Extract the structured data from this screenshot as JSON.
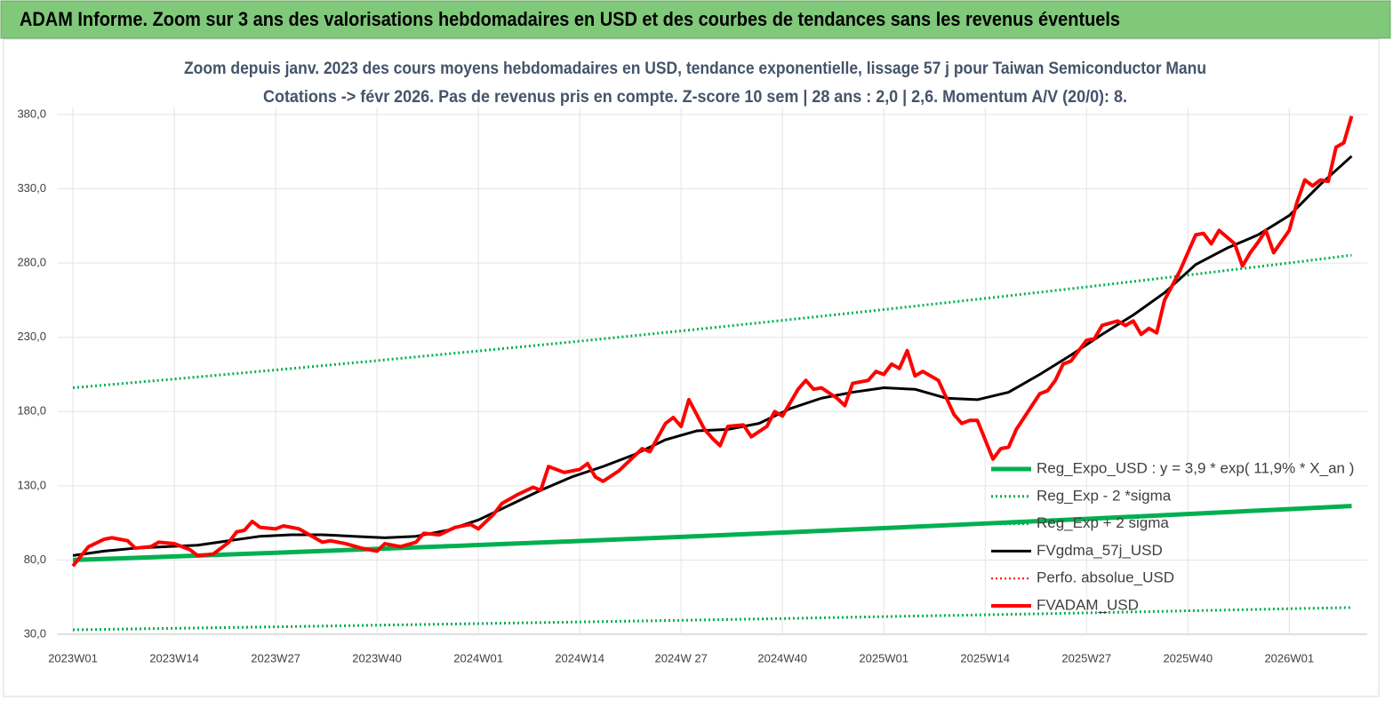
{
  "header": {
    "title": "ADAM Informe. Zoom sur 3 ans des valorisations hebdomadaires en USD et des courbes de tendances sans les revenus éventuels"
  },
  "chart_data": {
    "type": "line",
    "title": "Zoom depuis janv. 2023 des cours moyens hebdomadaires en USD, tendance exponentielle, lissage 57 j pour Taiwan Semiconductor Manu",
    "subtitle": "Cotations -> févr 2026. Pas de revenus pris en compte. Z-score 10 sem | 28 ans : 2,0 | 2,6. Momentum A/V (20/0): 8.",
    "xlim": [
      -2,
      166
    ],
    "xticks": [
      {
        "value": 0,
        "label": "2023W01"
      },
      {
        "value": 13,
        "label": "2023W14"
      },
      {
        "value": 26,
        "label": "2023W27"
      },
      {
        "value": 39,
        "label": "2023W40"
      },
      {
        "value": 52,
        "label": "2024W01"
      },
      {
        "value": 65,
        "label": "2024W14"
      },
      {
        "value": 78,
        "label": "2024W 27"
      },
      {
        "value": 91,
        "label": "2024W40"
      },
      {
        "value": 104,
        "label": "2025W01"
      },
      {
        "value": 117,
        "label": "2025W14"
      },
      {
        "value": 130,
        "label": "2025W27"
      },
      {
        "value": 143,
        "label": "2025W40"
      },
      {
        "value": 156,
        "label": "2026W01"
      }
    ],
    "ylim": [
      30,
      380
    ],
    "yticks": [
      {
        "value": 30,
        "label": "30,0"
      },
      {
        "value": 80,
        "label": "80,0"
      },
      {
        "value": 130,
        "label": "130,0"
      },
      {
        "value": 180,
        "label": "180,0"
      },
      {
        "value": 230,
        "label": "230,0"
      },
      {
        "value": 280,
        "label": "280,0"
      },
      {
        "value": 330,
        "label": "330,0"
      },
      {
        "value": 380,
        "label": "380,0"
      }
    ],
    "grid": true,
    "legend": "lower right",
    "series": [
      {
        "name": "Reg_Expo_USD : y = 3,9 * exp( 11,9% *  X_an )",
        "color": "#00b050",
        "width": 5,
        "dash": "none",
        "x": [
          0,
          13,
          26,
          39,
          52,
          65,
          78,
          91,
          104,
          117,
          130,
          143,
          156,
          164
        ],
        "values": [
          80,
          82.4,
          84.9,
          87.5,
          90.1,
          92.8,
          95.6,
          98.5,
          101.5,
          104.6,
          107.7,
          111.0,
          114.3,
          116.4
        ]
      },
      {
        "name": "Reg_Exp - 2 *sigma",
        "color": "#00b050",
        "width": 3,
        "dash": "2 3",
        "x": [
          0,
          13,
          26,
          39,
          52,
          65,
          78,
          91,
          104,
          117,
          130,
          143,
          156,
          164
        ],
        "values": [
          33,
          34.0,
          35.0,
          36.1,
          37.2,
          38.3,
          39.4,
          40.6,
          41.9,
          43.1,
          44.4,
          45.8,
          47.2,
          48.0
        ]
      },
      {
        "name": "Reg_Exp + 2 sigma",
        "color": "#00b050",
        "width": 3,
        "dash": "2 3",
        "x": [
          0,
          13,
          26,
          39,
          52,
          65,
          78,
          91,
          104,
          117,
          130,
          143,
          156,
          164
        ],
        "values": [
          196,
          201.9,
          208.0,
          214.3,
          220.8,
          227.4,
          234.3,
          241.4,
          248.7,
          256.2,
          263.9,
          271.9,
          280.1,
          285.3
        ]
      },
      {
        "name": "FVgdma_57j_USD",
        "color": "#000000",
        "width": 3,
        "dash": "none",
        "x": [
          0,
          4,
          8,
          12,
          16,
          20,
          24,
          28,
          32,
          36,
          40,
          44,
          48,
          52,
          56,
          60,
          64,
          68,
          72,
          76,
          80,
          84,
          88,
          92,
          96,
          100,
          104,
          108,
          112,
          116,
          120,
          124,
          128,
          132,
          136,
          140,
          144,
          148,
          152,
          156,
          160,
          164
        ],
        "values": [
          83,
          86,
          88,
          89,
          90,
          93,
          96,
          97,
          97,
          96,
          95,
          96,
          100,
          107,
          117,
          127,
          136,
          143,
          151,
          161,
          167,
          168,
          172,
          182,
          189,
          193,
          196,
          195,
          189,
          188,
          193,
          205,
          218,
          232,
          245,
          260,
          279,
          290,
          299,
          312,
          333,
          352
        ]
      },
      {
        "name": "Perfo. absolue_USD",
        "color": "#ff0000",
        "width": 2,
        "dash": "2 3",
        "x": [
          0,
          2,
          4,
          5,
          7,
          8,
          10,
          11,
          13,
          15,
          16,
          18,
          20,
          21,
          22,
          23,
          24,
          26,
          27,
          29,
          30,
          32,
          33,
          35,
          37,
          39,
          40,
          42,
          44,
          45,
          47,
          49,
          51,
          52,
          54,
          55,
          57,
          59,
          60,
          61,
          63,
          65,
          66,
          67,
          68,
          70,
          72,
          73,
          74,
          76,
          77,
          78,
          79,
          81,
          82,
          83,
          84,
          86,
          87,
          89,
          90,
          91,
          93,
          94,
          95,
          96,
          98,
          99,
          100,
          102,
          103,
          104,
          105,
          106,
          107,
          108,
          109,
          111,
          113,
          114,
          115,
          116,
          118,
          119,
          120,
          121,
          122,
          124,
          125,
          126,
          127,
          128,
          130,
          131,
          132,
          134,
          135,
          136,
          137,
          138,
          139,
          140,
          142,
          143,
          144,
          145,
          146,
          147,
          149,
          150,
          151,
          152,
          153,
          154,
          156,
          157,
          158,
          159,
          160,
          161,
          162,
          163,
          164
        ],
        "values": [
          76,
          89,
          94,
          95,
          93,
          88,
          89,
          92,
          91,
          87,
          83,
          84,
          92,
          99,
          100,
          106,
          102,
          101,
          103,
          101,
          98,
          92,
          93,
          91,
          88,
          86,
          91,
          89,
          92,
          98,
          97,
          102,
          104,
          101,
          111,
          118,
          124,
          129,
          127,
          143,
          139,
          141,
          145,
          136,
          133,
          140,
          150,
          155,
          153,
          172,
          176,
          170,
          188,
          168,
          162,
          157,
          170,
          171,
          163,
          170,
          180,
          177,
          195,
          201,
          195,
          196,
          189,
          184,
          199,
          201,
          207,
          205,
          212,
          209,
          221,
          204,
          207,
          201,
          178,
          172,
          174,
          174,
          148,
          155,
          156,
          168,
          176,
          192,
          194,
          201,
          212,
          214,
          228,
          229,
          238,
          241,
          238,
          241,
          232,
          236,
          233,
          255,
          275,
          287,
          299,
          300,
          293,
          302,
          293,
          278,
          287,
          294,
          302,
          287,
          302,
          321,
          336,
          332,
          336,
          335,
          358,
          361,
          379
        ]
      },
      {
        "name": "FVADAM_USD",
        "color": "#ff0000",
        "width": 4,
        "dash": "none",
        "x": [
          0,
          2,
          4,
          5,
          7,
          8,
          10,
          11,
          13,
          15,
          16,
          18,
          20,
          21,
          22,
          23,
          24,
          26,
          27,
          29,
          30,
          32,
          33,
          35,
          37,
          39,
          40,
          42,
          44,
          45,
          47,
          49,
          51,
          52,
          54,
          55,
          57,
          59,
          60,
          61,
          63,
          65,
          66,
          67,
          68,
          70,
          72,
          73,
          74,
          76,
          77,
          78,
          79,
          81,
          82,
          83,
          84,
          86,
          87,
          89,
          90,
          91,
          93,
          94,
          95,
          96,
          98,
          99,
          100,
          102,
          103,
          104,
          105,
          106,
          107,
          108,
          109,
          111,
          113,
          114,
          115,
          116,
          118,
          119,
          120,
          121,
          122,
          124,
          125,
          126,
          127,
          128,
          130,
          131,
          132,
          134,
          135,
          136,
          137,
          138,
          139,
          140,
          142,
          143,
          144,
          145,
          146,
          147,
          149,
          150,
          151,
          152,
          153,
          154,
          156,
          157,
          158,
          159,
          160,
          161,
          162,
          163,
          164
        ],
        "values": [
          76,
          89,
          94,
          95,
          93,
          88,
          89,
          92,
          91,
          87,
          83,
          84,
          92,
          99,
          100,
          106,
          102,
          101,
          103,
          101,
          98,
          92,
          93,
          91,
          88,
          86,
          91,
          89,
          92,
          98,
          97,
          102,
          104,
          101,
          111,
          118,
          124,
          129,
          127,
          143,
          139,
          141,
          145,
          136,
          133,
          140,
          150,
          155,
          153,
          172,
          176,
          170,
          188,
          168,
          162,
          157,
          170,
          171,
          163,
          170,
          180,
          177,
          195,
          201,
          195,
          196,
          189,
          184,
          199,
          201,
          207,
          205,
          212,
          209,
          221,
          204,
          207,
          201,
          178,
          172,
          174,
          174,
          148,
          155,
          156,
          168,
          176,
          192,
          194,
          201,
          212,
          214,
          228,
          229,
          238,
          241,
          238,
          241,
          232,
          236,
          233,
          255,
          275,
          287,
          299,
          300,
          293,
          302,
          293,
          278,
          287,
          294,
          302,
          287,
          302,
          321,
          336,
          332,
          336,
          335,
          358,
          361,
          379
        ]
      }
    ]
  }
}
